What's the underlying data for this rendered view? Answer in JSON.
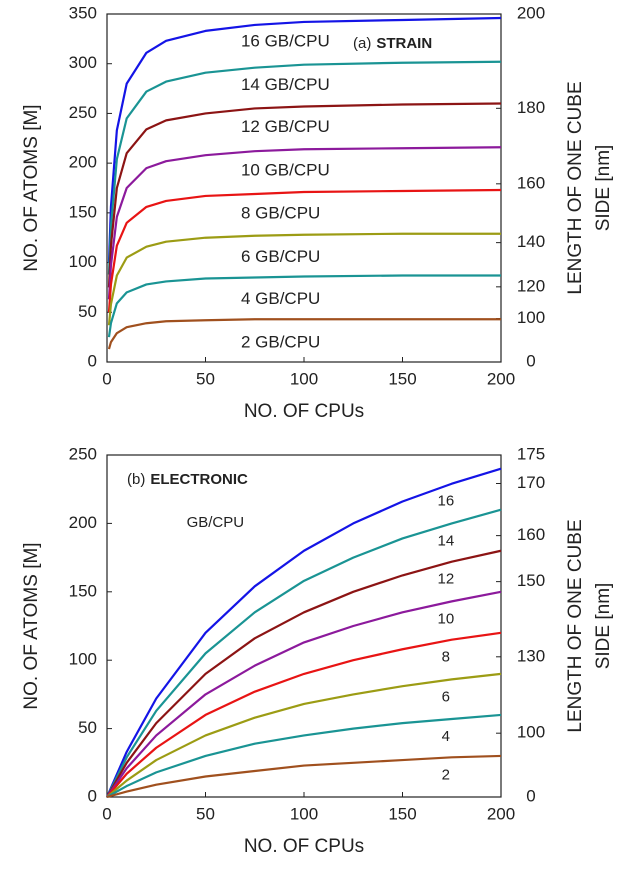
{
  "chart_data": [
    {
      "type": "line",
      "panel_label": "(a)",
      "panel_title": "STRAIN",
      "xlabel": "NO. OF CPUs",
      "ylabel": "NO. OF ATOMS [M]",
      "y2label": [
        "LENGTH OF ONE CUBE",
        "SIDE [nm]"
      ],
      "x": [
        1,
        2,
        5,
        10,
        20,
        30,
        50,
        75,
        100,
        150,
        200
      ],
      "xlim": [
        0,
        200
      ],
      "xticks": [
        0,
        50,
        100,
        150,
        200
      ],
      "ylim": [
        0,
        350
      ],
      "yticks": [
        0,
        50,
        100,
        150,
        200,
        250,
        300,
        350
      ],
      "y2lim": [
        0,
        200
      ],
      "y2ticks": [
        0,
        100,
        120,
        140,
        160,
        180,
        200
      ],
      "y2scale": "cube",
      "series": [
        {
          "name": "16 GB/CPU",
          "color": "#1414e6",
          "values": [
            100,
            156,
            233,
            280,
            311,
            323,
            333,
            339,
            342,
            344,
            346
          ]
        },
        {
          "name": "14 GB/CPU",
          "color": "#1a9494",
          "values": [
            88,
            136,
            204,
            245,
            272,
            282,
            291,
            296,
            299,
            301,
            302
          ]
        },
        {
          "name": "12 GB/CPU",
          "color": "#8c1414",
          "values": [
            75,
            117,
            175,
            210,
            234,
            243,
            250,
            255,
            257,
            259,
            260
          ]
        },
        {
          "name": "10 GB/CPU",
          "color": "#8c1a9c",
          "values": [
            63,
            97,
            146,
            175,
            195,
            202,
            208,
            212,
            214,
            215,
            216
          ]
        },
        {
          "name": "8 GB/CPU",
          "color": "#e81414",
          "values": [
            50,
            78,
            117,
            140,
            156,
            162,
            167,
            169,
            171,
            172,
            173
          ]
        },
        {
          "name": "6 GB/CPU",
          "color": "#9c9c14",
          "values": [
            37,
            58,
            87,
            105,
            116,
            121,
            125,
            127,
            128,
            129,
            129
          ]
        },
        {
          "name": "4 GB/CPU",
          "color": "#1a9494",
          "values": [
            25,
            39,
            59,
            70,
            78,
            81,
            84,
            85,
            86,
            87,
            87
          ]
        },
        {
          "name": "2 GB/CPU",
          "color": "#a0501e",
          "values": [
            13,
            20,
            29,
            35,
            39,
            41,
            42,
            43,
            43,
            43,
            43
          ]
        }
      ]
    },
    {
      "type": "line",
      "panel_label": "(b)",
      "panel_title": "ELECTRONIC",
      "annotation": "GB/CPU",
      "xlabel": "NO. OF CPUs",
      "ylabel": "NO. OF ATOMS [M]",
      "y2label": [
        "LENGTH OF ONE CUBE",
        "SIDE [nm]"
      ],
      "x": [
        0,
        10,
        25,
        50,
        75,
        100,
        125,
        150,
        175,
        200
      ],
      "xlim": [
        0,
        200
      ],
      "xticks": [
        0,
        50,
        100,
        150,
        200
      ],
      "ylim": [
        0,
        250
      ],
      "yticks": [
        0,
        50,
        100,
        150,
        200,
        250
      ],
      "y2lim": [
        0,
        175
      ],
      "y2ticks": [
        0,
        100,
        130,
        150,
        160,
        170,
        175
      ],
      "y2scale": "cube",
      "series": [
        {
          "name": "16",
          "color": "#1414e6",
          "values": [
            0,
            33,
            72,
            120,
            154,
            180,
            200,
            216,
            229,
            240
          ]
        },
        {
          "name": "14",
          "color": "#1a9494",
          "values": [
            0,
            29,
            63,
            105,
            135,
            158,
            175,
            189,
            200,
            210
          ]
        },
        {
          "name": "12",
          "color": "#8c1414",
          "values": [
            0,
            25,
            54,
            90,
            116,
            135,
            150,
            162,
            172,
            180
          ]
        },
        {
          "name": "10",
          "color": "#8c1a9c",
          "values": [
            0,
            21,
            45,
            75,
            96,
            113,
            125,
            135,
            143,
            150
          ]
        },
        {
          "name": "8",
          "color": "#e81414",
          "values": [
            0,
            17,
            36,
            60,
            77,
            90,
            100,
            108,
            115,
            120
          ]
        },
        {
          "name": "6",
          "color": "#9c9c14",
          "values": [
            0,
            12,
            27,
            45,
            58,
            68,
            75,
            81,
            86,
            90
          ]
        },
        {
          "name": "4",
          "color": "#1a9494",
          "values": [
            0,
            8,
            18,
            30,
            39,
            45,
            50,
            54,
            57,
            60
          ]
        },
        {
          "name": "2",
          "color": "#a0501e",
          "values": [
            0,
            4,
            9,
            15,
            19,
            23,
            25,
            27,
            29,
            30
          ]
        }
      ]
    }
  ]
}
